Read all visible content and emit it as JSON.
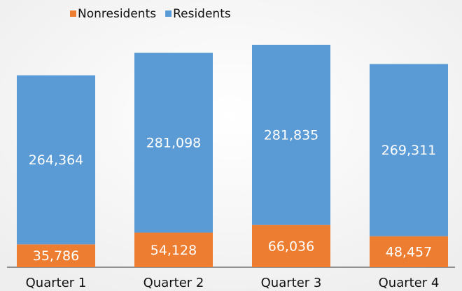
{
  "chart_data": {
    "type": "stacked_bar",
    "categories": [
      "Quarter 1",
      "Quarter 2",
      "Quarter 3",
      "Quarter 4"
    ],
    "series": [
      {
        "name": "Nonresidents",
        "color": "#ed7d31",
        "values": [
          35786,
          54128,
          66036,
          48457
        ],
        "value_labels": [
          "35,786",
          "54,128",
          "66,036",
          "48,457"
        ]
      },
      {
        "name": "Residents",
        "color": "#5b9bd5",
        "values": [
          264364,
          281098,
          281835,
          269311
        ],
        "value_labels": [
          "264,364",
          "281,098",
          "281,835",
          "269,311"
        ]
      }
    ],
    "legend": "top"
  }
}
